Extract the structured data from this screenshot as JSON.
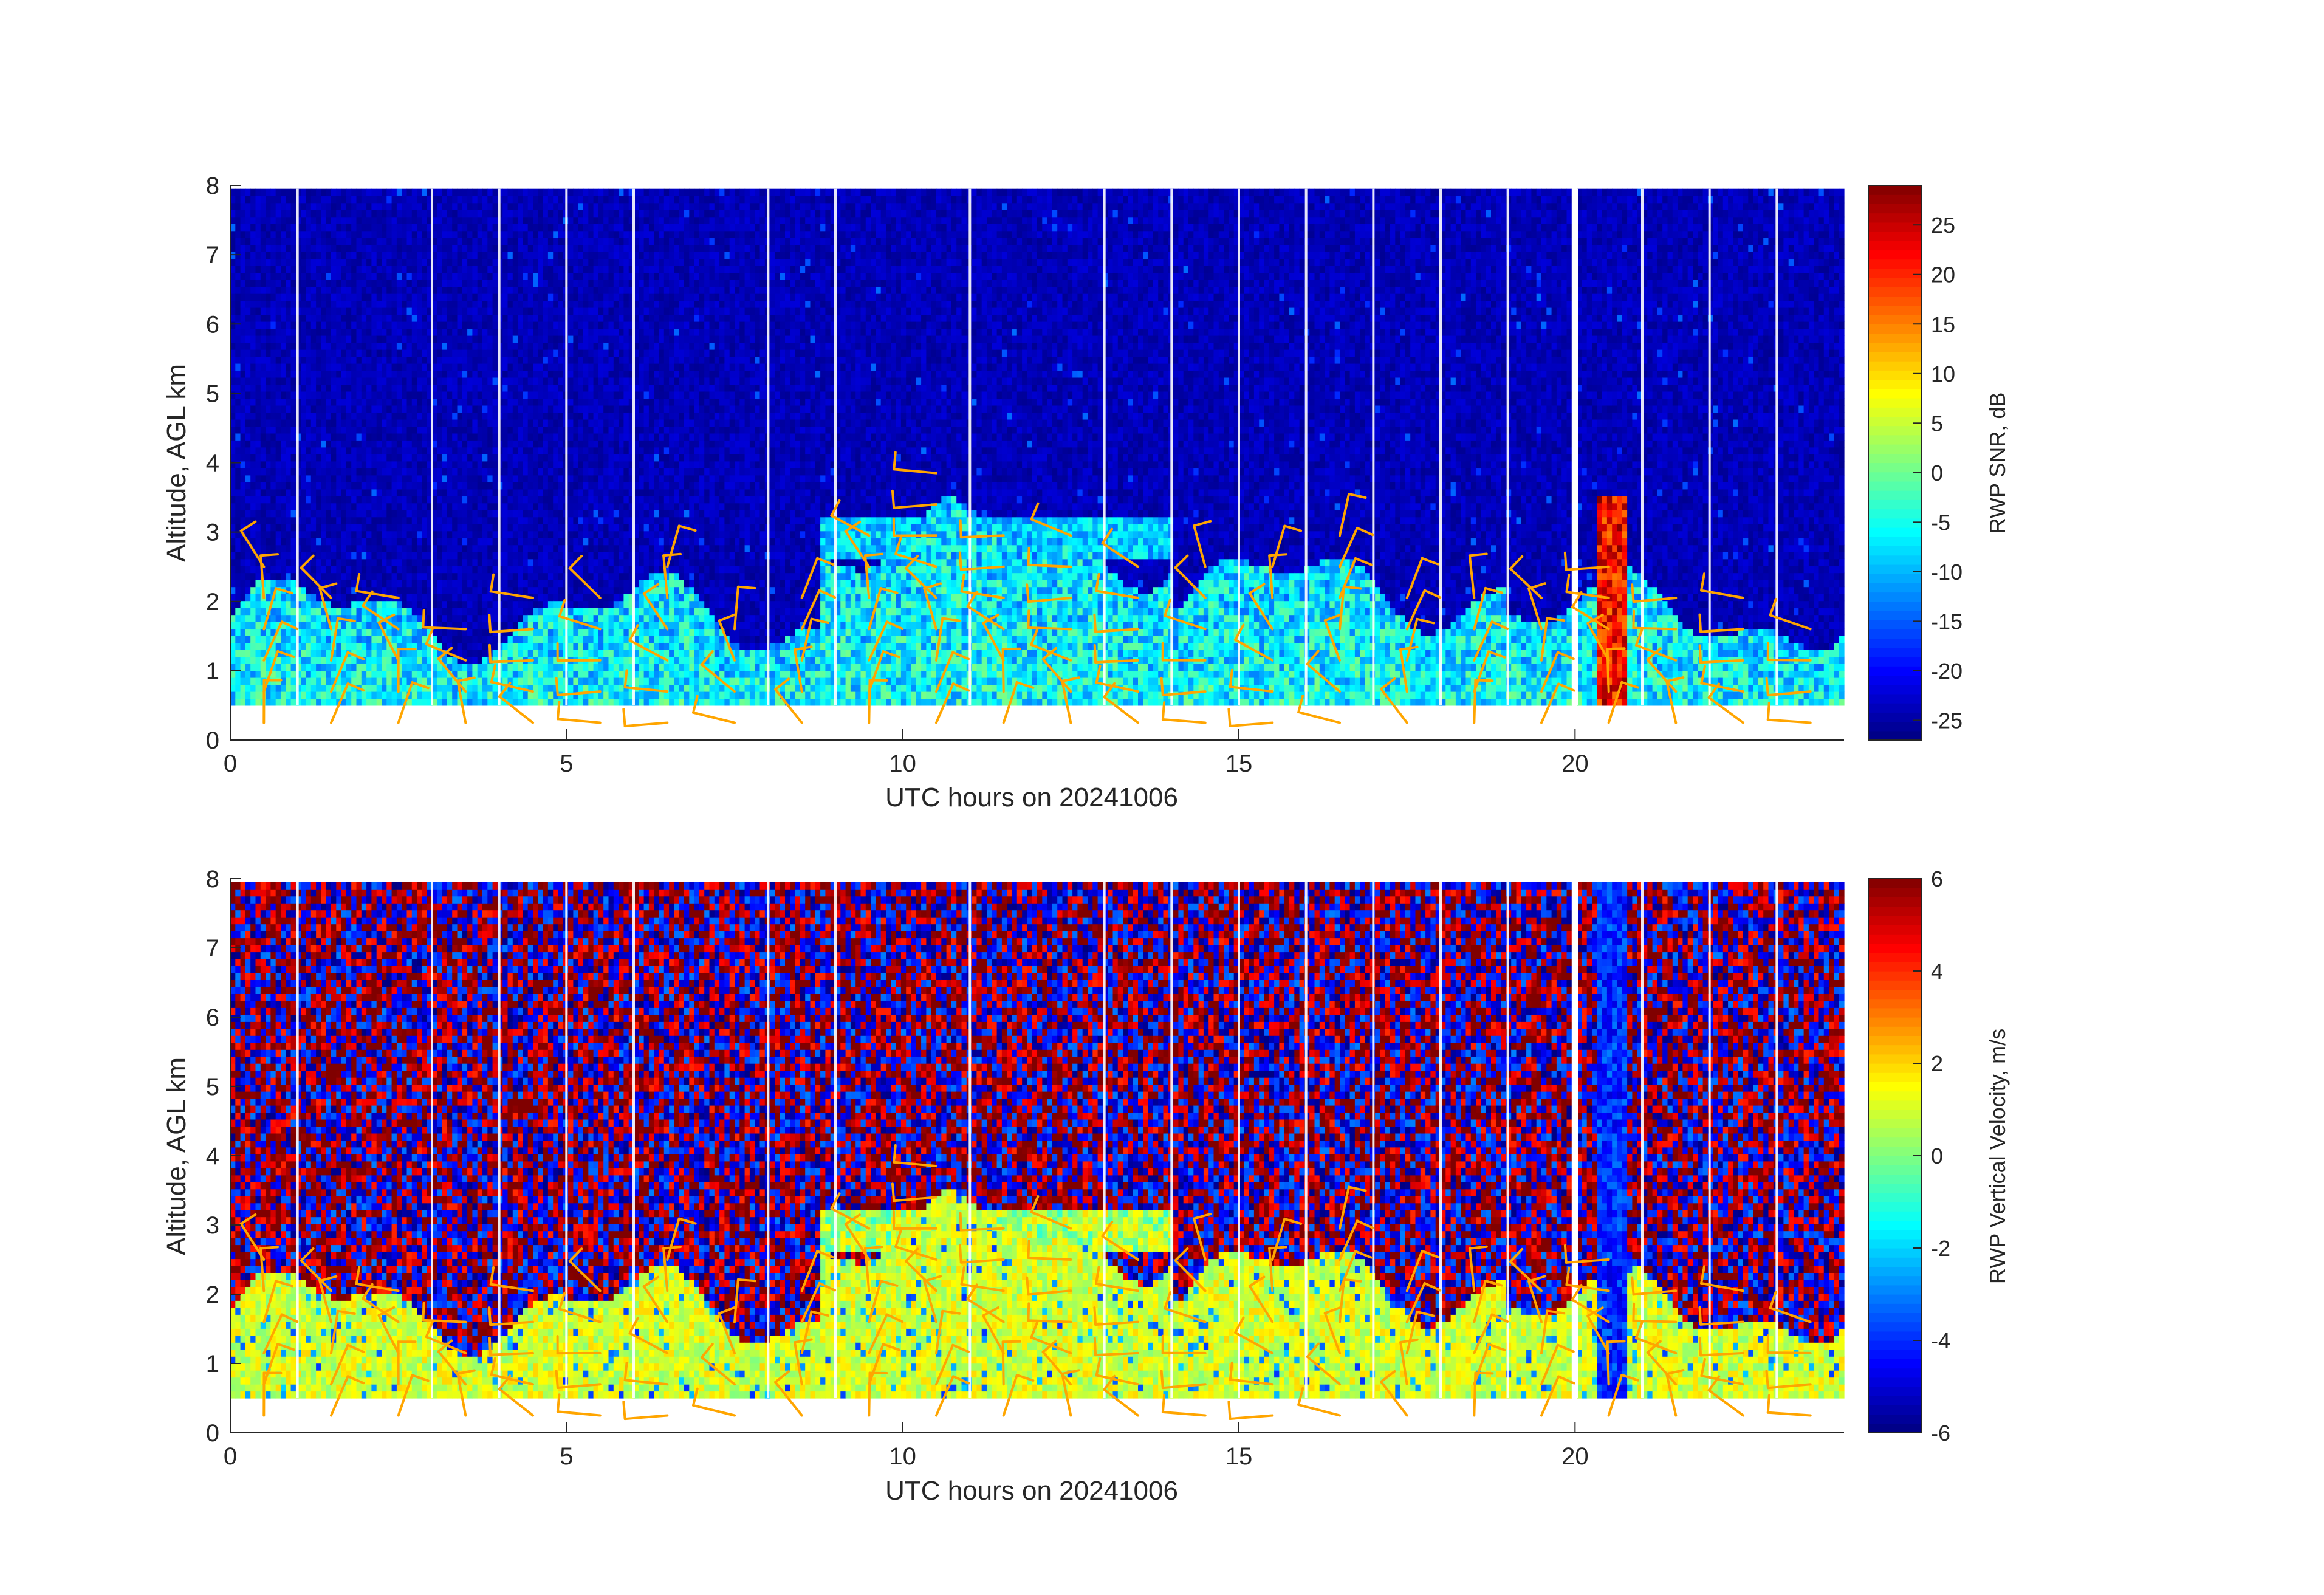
{
  "chart_data": [
    {
      "type": "heatmap",
      "name": "snr",
      "xlabel": "UTC hours on 20241006",
      "ylabel": "Altitude, AGL km",
      "xlim": [
        0,
        24
      ],
      "ylim": [
        0,
        8
      ],
      "xticks": [
        "0",
        "5",
        "10",
        "15",
        "20"
      ],
      "yticks": [
        "0",
        "1",
        "2",
        "3",
        "4",
        "5",
        "6",
        "7",
        "8"
      ],
      "colorbar": {
        "label": "RWP SNR, dB",
        "range": [
          -27,
          29
        ],
        "ticks": [
          "25",
          "20",
          "15",
          "10",
          "5",
          "0",
          "-5",
          "-10",
          "-15",
          "-20",
          "-25"
        ],
        "colormap": "jet"
      },
      "data_gap_bottom_km": 0.5,
      "gap_hours": [
        1,
        3,
        4,
        5,
        6,
        8,
        9,
        11,
        13,
        14,
        15,
        16,
        17,
        18,
        19,
        21,
        22,
        23
      ],
      "missing_interval_hours": [
        19.95,
        20.05
      ],
      "barb_color": "#ffa500"
    },
    {
      "type": "heatmap",
      "name": "vertical_velocity",
      "xlabel": "UTC hours on 20241006",
      "ylabel": "Altitude, AGL km",
      "xlim": [
        0,
        24
      ],
      "ylim": [
        0,
        8
      ],
      "xticks": [
        "0",
        "5",
        "10",
        "15",
        "20"
      ],
      "yticks": [
        "0",
        "1",
        "2",
        "3",
        "4",
        "5",
        "6",
        "7",
        "8"
      ],
      "colorbar": {
        "label": "RWP Vertical Velocity, m/s",
        "range": [
          -6,
          6
        ],
        "ticks": [
          "6",
          "4",
          "2",
          "0",
          "-2",
          "-4",
          "-6"
        ],
        "colormap": "jet"
      },
      "data_gap_bottom_km": 0.5,
      "gap_hours": [
        1,
        3,
        4,
        5,
        6,
        8,
        9,
        11,
        13,
        14,
        15,
        16,
        17,
        18,
        19,
        21,
        22,
        23
      ],
      "missing_interval_hours": [
        19.95,
        20.05
      ],
      "barb_color": "#ffa500"
    }
  ]
}
